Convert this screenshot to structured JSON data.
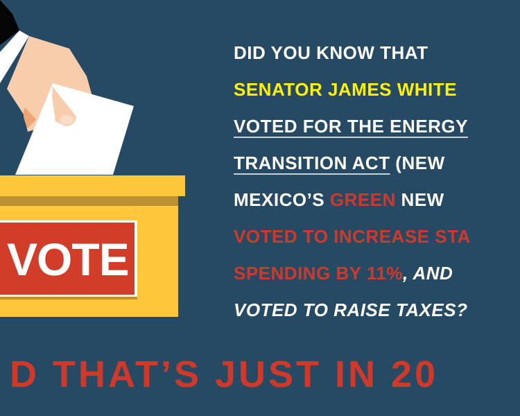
{
  "illustration": {
    "sign_text": "VOTE",
    "colors": {
      "background": "#274a64",
      "box": "#fdc63b",
      "box_shadow": "#bb922f",
      "sign": "#d23d29",
      "skin": "#f8cdac"
    }
  },
  "facts": {
    "l1": "DID YOU KNOW THAT",
    "l2": "SENATOR JAMES WHITE",
    "l3": "VOTED FOR THE ENERGY",
    "l4a": "TRANSITION ACT",
    "l4b": " (NEW",
    "l5a": "MEXICO’S ",
    "l5b": "GREEN",
    "l5c": " NEW",
    "l6": "VOTED TO INCREASE STA",
    "l7a": "SPENDING BY 11%",
    "l7b": ", AND",
    "l8": "VOTED TO RAISE TAXES?"
  },
  "tagline": "D THAT’S JUST IN 20",
  "colors": {
    "highlight_yellow": "#fff200",
    "highlight_red": "#d0392a",
    "text": "#ffffff"
  }
}
